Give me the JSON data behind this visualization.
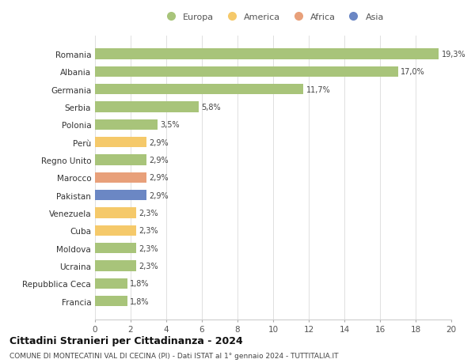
{
  "title": "Cittadini Stranieri per Cittadinanza - 2024",
  "subtitle": "COMUNE DI MONTECATINI VAL DI CECINA (PI) - Dati ISTAT al 1° gennaio 2024 - TUTTITALIA.IT",
  "categories": [
    "Francia",
    "Repubblica Ceca",
    "Ucraina",
    "Moldova",
    "Cuba",
    "Venezuela",
    "Pakistan",
    "Marocco",
    "Regno Unito",
    "Perù",
    "Polonia",
    "Serbia",
    "Germania",
    "Albania",
    "Romania"
  ],
  "values": [
    1.8,
    1.8,
    2.3,
    2.3,
    2.3,
    2.3,
    2.9,
    2.9,
    2.9,
    2.9,
    3.5,
    5.8,
    11.7,
    17.0,
    19.3
  ],
  "labels": [
    "1,8%",
    "1,8%",
    "2,3%",
    "2,3%",
    "2,3%",
    "2,3%",
    "2,9%",
    "2,9%",
    "2,9%",
    "2,9%",
    "3,5%",
    "5,8%",
    "11,7%",
    "17,0%",
    "19,3%"
  ],
  "bar_colors": [
    "#a8c47a",
    "#a8c47a",
    "#a8c47a",
    "#a8c47a",
    "#f5c96a",
    "#f5c96a",
    "#6b87c4",
    "#e8a07a",
    "#a8c47a",
    "#f5c96a",
    "#a8c47a",
    "#a8c47a",
    "#a8c47a",
    "#a8c47a",
    "#a8c47a"
  ],
  "legend": [
    {
      "label": "Europa",
      "color": "#a8c47a"
    },
    {
      "label": "America",
      "color": "#f5c96a"
    },
    {
      "label": "Africa",
      "color": "#e8a07a"
    },
    {
      "label": "Asia",
      "color": "#6b87c4"
    }
  ],
  "xlim": [
    0,
    20
  ],
  "xticks": [
    0,
    2,
    4,
    6,
    8,
    10,
    12,
    14,
    16,
    18,
    20
  ],
  "background_color": "#ffffff",
  "grid_color": "#e0e0e0",
  "bar_height": 0.6
}
